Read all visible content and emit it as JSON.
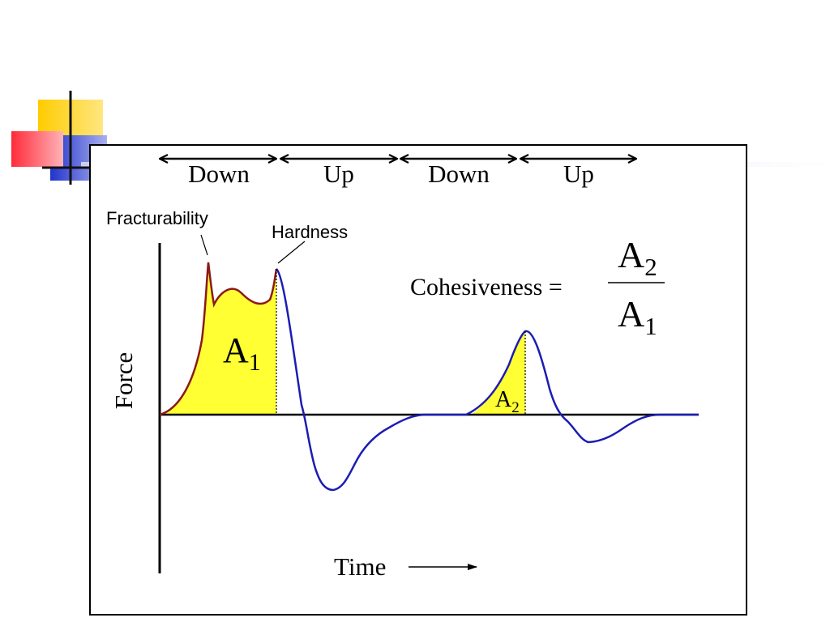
{
  "diagram": {
    "phases": [
      "Down",
      "Up",
      "Down",
      "Up"
    ],
    "annotations": {
      "fracturability": "Fracturability",
      "hardness": "Hardness"
    },
    "areas": {
      "a1": {
        "base": "A",
        "sub": "1"
      },
      "a2": {
        "base": "A",
        "sub": "2"
      }
    },
    "formula": {
      "lhs": "Cohesiveness =",
      "numerator": {
        "base": "A",
        "sub": "2"
      },
      "denominator": {
        "base": "A",
        "sub": "1"
      }
    },
    "axes": {
      "y_label": "Force",
      "x_label": "Time"
    },
    "colors": {
      "area_fill": "#ffff33",
      "curve_first": "#8b1a1a",
      "curve_main": "#1c1cb4",
      "frame": "#000000",
      "accent_yellow": "#ffd700",
      "accent_red": "#ff3344",
      "accent_blue": "#3344dd"
    }
  }
}
